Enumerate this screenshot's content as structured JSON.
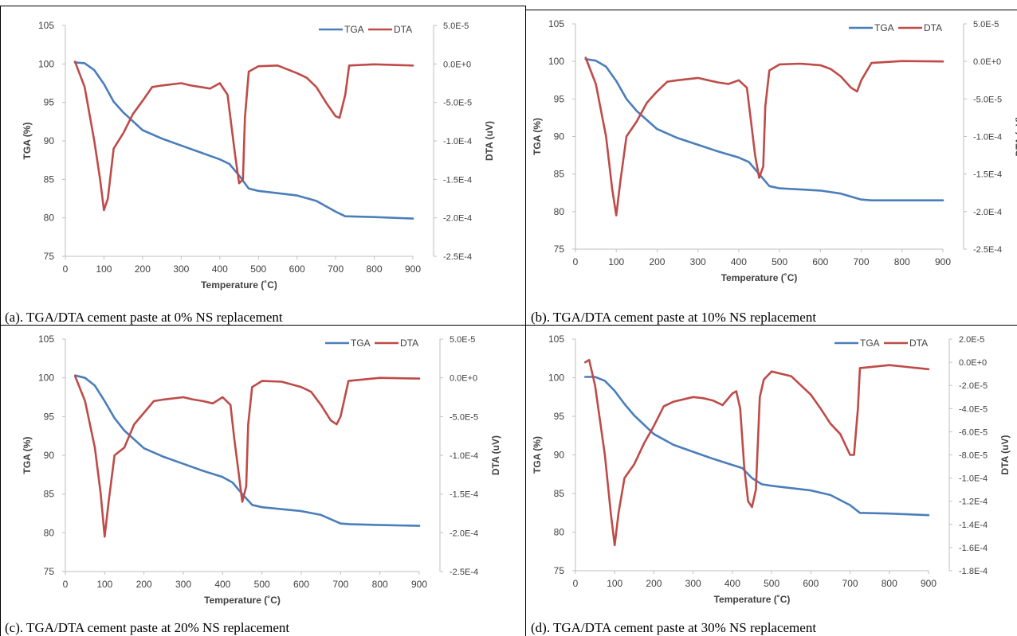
{
  "colors": {
    "tga": "#4A7EBB",
    "dta": "#BE4B48",
    "axis": "#BFBFBF",
    "text": "#404040"
  },
  "chart_data": [
    {
      "type": "line",
      "caption": "(a). TGA/DTA cement paste at 0% NS replacement",
      "xlabel": "Temperature (˚C)",
      "ylabel": "TGA (%)",
      "y2label": "DTA (uV)",
      "xlim": [
        0,
        900
      ],
      "xticks": [
        "0",
        "100",
        "200",
        "300",
        "400",
        "500",
        "600",
        "700",
        "800",
        "900"
      ],
      "ylim": [
        75,
        105
      ],
      "yticks": [
        "75",
        "80",
        "85",
        "90",
        "95",
        "100",
        "105"
      ],
      "y2lim": [
        -0.00025,
        5e-05
      ],
      "y2ticks": [
        "-2.5E-4",
        "-2.0E-4",
        "-1.5E-4",
        "-1.0E-4",
        "-5.0E-5",
        "0.0E+0",
        "5.0E-5"
      ],
      "legend": "top-right",
      "series": [
        {
          "name": "TGA",
          "axis": "left",
          "x": [
            25,
            50,
            75,
            100,
            125,
            150,
            200,
            250,
            300,
            350,
            400,
            425,
            450,
            475,
            500,
            600,
            650,
            700,
            725,
            800,
            900
          ],
          "values": [
            100.2,
            100.1,
            99.2,
            97.4,
            95.1,
            93.7,
            91.4,
            90.3,
            89.4,
            88.5,
            87.6,
            87.0,
            85.5,
            83.8,
            83.5,
            82.9,
            82.2,
            80.8,
            80.2,
            80.1,
            79.9
          ]
        },
        {
          "name": "DTA",
          "axis": "right",
          "x": [
            25,
            50,
            75,
            90,
            100,
            110,
            125,
            150,
            175,
            200,
            225,
            250,
            300,
            325,
            350,
            375,
            400,
            420,
            430,
            440,
            450,
            460,
            465,
            475,
            500,
            550,
            600,
            625,
            650,
            675,
            700,
            710,
            725,
            735,
            800,
            900
          ],
          "values": [
            3e-06,
            -3e-05,
            -0.0001,
            -0.00015,
            -0.00019,
            -0.000175,
            -0.00011,
            -9e-05,
            -6.5e-05,
            -4.8e-05,
            -3e-05,
            -2.8e-05,
            -2.5e-05,
            -2.8e-05,
            -3e-05,
            -3.2e-05,
            -2.5e-05,
            -4e-05,
            -8e-05,
            -0.00012,
            -0.000155,
            -0.00015,
            -7e-05,
            -1e-05,
            -3e-06,
            -2e-06,
            -1.2e-05,
            -1.8e-05,
            -3e-05,
            -5e-05,
            -6.8e-05,
            -7e-05,
            -4e-05,
            -2e-06,
            -5e-07,
            -2e-06
          ]
        }
      ]
    },
    {
      "type": "line",
      "caption": "(b). TGA/DTA cement paste at 10% NS replacement",
      "xlabel": "Temperature (˚C)",
      "ylabel": "TGA (%)",
      "y2label": "DTA (uV)",
      "xlim": [
        0,
        900
      ],
      "xticks": [
        "0",
        "100",
        "200",
        "300",
        "400",
        "500",
        "600",
        "700",
        "800",
        "900"
      ],
      "ylim": [
        75,
        105
      ],
      "yticks": [
        "75",
        "80",
        "85",
        "90",
        "95",
        "100",
        "105"
      ],
      "y2lim": [
        -0.00025,
        5e-05
      ],
      "y2ticks": [
        "-2.5E-4",
        "-2.0E-4",
        "-1.5E-4",
        "-1.0E-4",
        "-5.0E-5",
        "0.0E+0",
        "5.0E-5"
      ],
      "legend": "top-right",
      "series": [
        {
          "name": "TGA",
          "axis": "left",
          "x": [
            25,
            50,
            75,
            100,
            125,
            150,
            200,
            250,
            300,
            350,
            400,
            425,
            450,
            475,
            500,
            600,
            650,
            700,
            725,
            800,
            900
          ],
          "values": [
            100.3,
            100.1,
            99.3,
            97.4,
            95.0,
            93.4,
            91.0,
            89.8,
            88.9,
            88.0,
            87.2,
            86.6,
            85.0,
            83.4,
            83.1,
            82.8,
            82.4,
            81.6,
            81.5,
            81.5,
            81.5
          ]
        },
        {
          "name": "DTA",
          "axis": "right",
          "x": [
            25,
            50,
            75,
            90,
            100,
            110,
            125,
            150,
            175,
            200,
            225,
            250,
            300,
            325,
            350,
            375,
            400,
            420,
            430,
            440,
            450,
            460,
            465,
            475,
            500,
            550,
            600,
            625,
            650,
            675,
            690,
            700,
            725,
            800,
            900
          ],
          "values": [
            5e-06,
            -3e-05,
            -0.0001,
            -0.00017,
            -0.000205,
            -0.00016,
            -0.0001,
            -8e-05,
            -5.5e-05,
            -4e-05,
            -2.7e-05,
            -2.5e-05,
            -2.2e-05,
            -2.5e-05,
            -2.8e-05,
            -3e-05,
            -2.5e-05,
            -3.5e-05,
            -8e-05,
            -0.000125,
            -0.000155,
            -0.00014,
            -6e-05,
            -1.2e-05,
            -4e-06,
            -3e-06,
            -5e-06,
            -1e-05,
            -2e-05,
            -3.5e-05,
            -4e-05,
            -2.5e-05,
            -2e-06,
            5e-07,
            0
          ]
        }
      ]
    },
    {
      "type": "line",
      "caption": "(c). TGA/DTA cement paste at 20% NS replacement",
      "xlabel": "Temperature (˚C)",
      "ylabel": "TGA (%)",
      "y2label": "DTA (uV)",
      "xlim": [
        0,
        900
      ],
      "xticks": [
        "0",
        "100",
        "200",
        "300",
        "400",
        "500",
        "600",
        "700",
        "800",
        "900"
      ],
      "ylim": [
        75,
        105
      ],
      "yticks": [
        "75",
        "80",
        "85",
        "90",
        "95",
        "100",
        "105"
      ],
      "y2lim": [
        -0.00025,
        5e-05
      ],
      "y2ticks": [
        "-2.5E-4",
        "-2.0E-4",
        "-1.5E-4",
        "-1.0E-4",
        "-5.0E-5",
        "0.0E+0",
        "5.0E-5"
      ],
      "legend": "top-right",
      "series": [
        {
          "name": "TGA",
          "axis": "left",
          "x": [
            25,
            50,
            75,
            100,
            125,
            150,
            200,
            250,
            300,
            350,
            400,
            425,
            450,
            475,
            500,
            600,
            650,
            700,
            725,
            800,
            900
          ],
          "values": [
            100.3,
            100.0,
            99.0,
            97.0,
            94.8,
            93.2,
            90.9,
            89.8,
            88.9,
            88.0,
            87.2,
            86.5,
            85.0,
            83.6,
            83.3,
            82.8,
            82.3,
            81.2,
            81.1,
            81.0,
            80.9
          ]
        },
        {
          "name": "DTA",
          "axis": "right",
          "x": [
            25,
            50,
            75,
            90,
            100,
            110,
            125,
            150,
            175,
            200,
            225,
            250,
            300,
            325,
            350,
            375,
            400,
            420,
            430,
            440,
            450,
            460,
            465,
            475,
            500,
            550,
            600,
            625,
            650,
            675,
            690,
            700,
            720,
            800,
            900
          ],
          "values": [
            2e-06,
            -3e-05,
            -9e-05,
            -0.00015,
            -0.000205,
            -0.00016,
            -0.0001,
            -9e-05,
            -6e-05,
            -4.5e-05,
            -3e-05,
            -2.8e-05,
            -2.5e-05,
            -2.8e-05,
            -3e-05,
            -3.3e-05,
            -2.5e-05,
            -3.5e-05,
            -8e-05,
            -0.00012,
            -0.00016,
            -0.00014,
            -6e-05,
            -1.2e-05,
            -4e-06,
            -5e-06,
            -1.2e-05,
            -1.8e-05,
            -3.5e-05,
            -5.5e-05,
            -6e-05,
            -5e-05,
            -4e-06,
            0,
            -1e-06
          ]
        }
      ]
    },
    {
      "type": "line",
      "caption": "(d). TGA/DTA cement paste at 30% NS replacement",
      "xlabel": "Temperature (˚C)",
      "ylabel": "TGA (%)",
      "y2label": "DTA (uV)",
      "xlim": [
        0,
        900
      ],
      "xticks": [
        "0",
        "100",
        "200",
        "300",
        "400",
        "500",
        "600",
        "700",
        "800",
        "900"
      ],
      "ylim": [
        75,
        105
      ],
      "yticks": [
        "75",
        "80",
        "85",
        "90",
        "95",
        "100",
        "105"
      ],
      "y2lim": [
        -0.00018,
        2e-05
      ],
      "y2ticks": [
        "-1.8E-4",
        "-1.6E-4",
        "-1.4E-4",
        "-1.2E-4",
        "-1.0E-4",
        "-8.0E-5",
        "-6.0E-5",
        "-4.0E-5",
        "-2.0E-5",
        "0.0E+0",
        "2.0E-5"
      ],
      "legend": "top-right",
      "series": [
        {
          "name": "TGA",
          "axis": "left",
          "x": [
            25,
            50,
            75,
            100,
            125,
            150,
            200,
            250,
            300,
            350,
            400,
            425,
            450,
            475,
            500,
            600,
            650,
            700,
            725,
            800,
            900
          ],
          "values": [
            100.1,
            100.1,
            99.6,
            98.3,
            96.6,
            95.1,
            92.7,
            91.3,
            90.4,
            89.5,
            88.7,
            88.3,
            87.0,
            86.2,
            86.0,
            85.4,
            84.8,
            83.5,
            82.5,
            82.4,
            82.2
          ]
        },
        {
          "name": "DTA",
          "axis": "right",
          "x": [
            25,
            35,
            50,
            75,
            90,
            100,
            110,
            125,
            150,
            175,
            200,
            225,
            250,
            300,
            325,
            350,
            375,
            400,
            410,
            420,
            430,
            440,
            450,
            460,
            470,
            480,
            500,
            550,
            600,
            625,
            650,
            675,
            700,
            710,
            720,
            725,
            800,
            900
          ],
          "values": [
            0,
            2e-06,
            -2e-05,
            -8e-05,
            -0.00013,
            -0.000158,
            -0.00013,
            -0.0001,
            -8.8e-05,
            -7e-05,
            -5.5e-05,
            -3.8e-05,
            -3.4e-05,
            -3e-05,
            -3.1e-05,
            -3.3e-05,
            -3.7e-05,
            -2.7e-05,
            -2.5e-05,
            -4e-05,
            -9e-05,
            -0.00012,
            -0.000125,
            -0.00011,
            -3e-05,
            -1.5e-05,
            -8e-06,
            -1.2e-05,
            -2.8e-05,
            -4e-05,
            -5.3e-05,
            -6.2e-05,
            -8e-05,
            -8e-05,
            -4e-05,
            -5e-06,
            -2.5e-06,
            -6e-06
          ]
        }
      ]
    }
  ]
}
